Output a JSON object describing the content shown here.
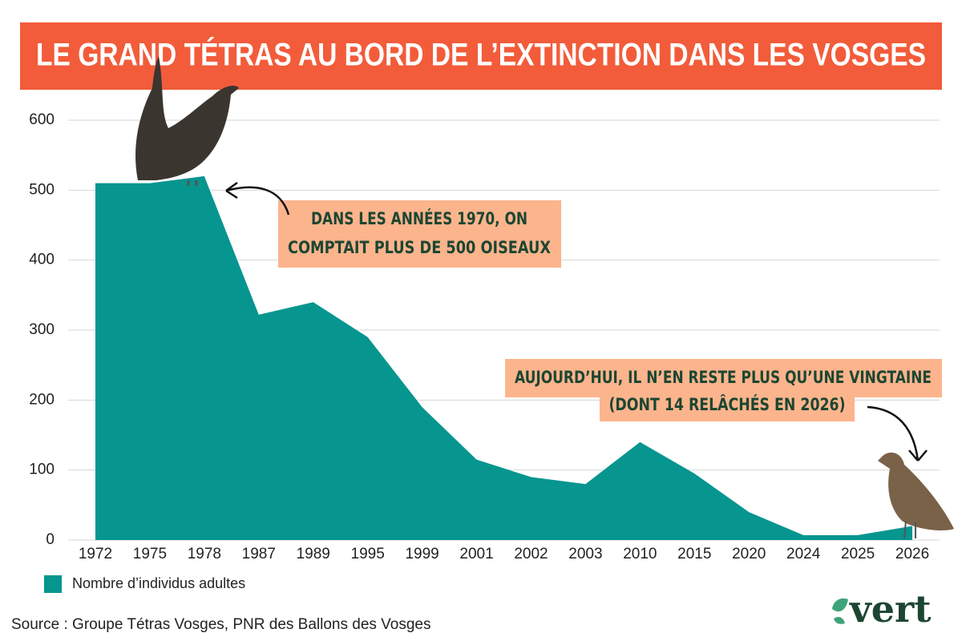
{
  "chart_data": {
    "type": "area",
    "title": "LE GRAND TÉTRAS AU BORD DE L’EXTINCTION DANS LES VOSGES",
    "categories": [
      "1972",
      "1975",
      "1978",
      "1987",
      "1989",
      "1995",
      "1999",
      "2001",
      "2002",
      "2003",
      "2010",
      "2015",
      "2020",
      "2024",
      "2025",
      "2026"
    ],
    "series": [
      {
        "name": "Nombre d’individus adultes",
        "color": "#07958f",
        "values": [
          510,
          510,
          520,
          322,
          340,
          290,
          190,
          115,
          90,
          80,
          140,
          95,
          40,
          7,
          7,
          20
        ]
      }
    ],
    "ylim": [
      0,
      600
    ],
    "yticks": [
      0,
      100,
      200,
      300,
      400,
      500,
      600
    ],
    "grid": true,
    "annotations": [
      {
        "lines": [
          "DANS LES ANNÉES 1970, ON",
          "COMPTAIT PLUS DE 500 OISEAUX"
        ]
      },
      {
        "lines": [
          "AUJOURD’HUI, IL N’EN RESTE PLUS QU’UNE VINGTAINE",
          "(DONT 14 RELÂCHÉS EN 2026)"
        ]
      }
    ],
    "source": "Source : Groupe Tétras Vosges, PNR des Ballons des Vosges",
    "brand": "vert"
  }
}
